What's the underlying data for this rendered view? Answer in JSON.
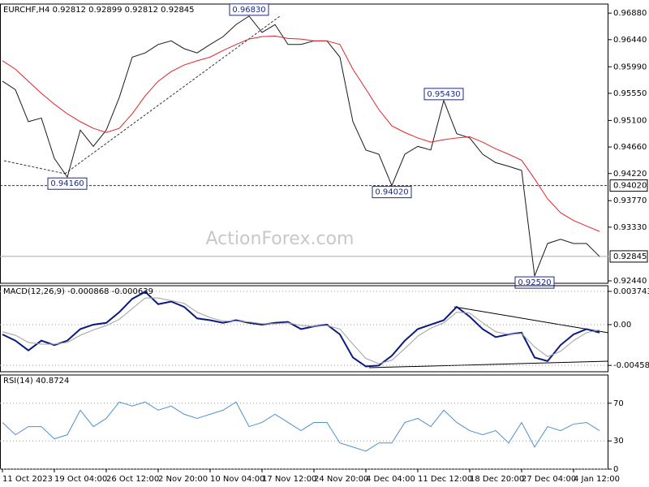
{
  "chart_data": [
    {
      "type": "line",
      "title": "EURCHF,H4  0.92812 0.92899 0.92812 0.92845",
      "watermark": "ActionForex.com",
      "ylim": [
        0.924,
        0.9703
      ],
      "yticks": [
        {
          "value": 0.9688,
          "label": "0.96880"
        },
        {
          "value": 0.9644,
          "label": "0.96440"
        },
        {
          "value": 0.9599,
          "label": "0.95990"
        },
        {
          "value": 0.9555,
          "label": "0.95550"
        },
        {
          "value": 0.951,
          "label": "0.95100"
        },
        {
          "value": 0.9466,
          "label": "0.94660"
        },
        {
          "value": 0.9422,
          "label": "0.94220"
        },
        {
          "value": 0.9377,
          "label": "0.93770"
        },
        {
          "value": 0.9333,
          "label": "0.93330"
        },
        {
          "value": 0.9244,
          "label": "0.92440"
        }
      ],
      "grid": false,
      "series": [
        {
          "color": "#1a1a1a",
          "values": [
            0.9575,
            0.9561,
            0.9508,
            0.9514,
            0.9447,
            0.9416,
            0.9494,
            0.9467,
            0.9494,
            0.9548,
            0.9615,
            0.9622,
            0.9636,
            0.9642,
            0.9629,
            0.9622,
            0.9636,
            0.9649,
            0.9669,
            0.9683,
            0.9656,
            0.9669,
            0.9636,
            0.9636,
            0.9642,
            0.9642,
            0.9615,
            0.9508,
            0.9461,
            0.9454,
            0.9402,
            0.9454,
            0.9467,
            0.9461,
            0.9543,
            0.9488,
            0.9481,
            0.9454,
            0.944,
            0.9434,
            0.9427,
            0.9252,
            0.9306,
            0.9313,
            0.9306,
            0.9306,
            0.92845
          ]
        },
        {
          "color": "#e0242b",
          "values": [
            0.9609,
            0.9595,
            0.9575,
            0.9555,
            0.9537,
            0.9521,
            0.9508,
            0.9497,
            0.949,
            0.9497,
            0.9521,
            0.9551,
            0.9575,
            0.9591,
            0.9602,
            0.9609,
            0.9615,
            0.9626,
            0.9636,
            0.9645,
            0.9649,
            0.965,
            0.9646,
            0.9645,
            0.9642,
            0.9642,
            0.9636,
            0.9595,
            0.9562,
            0.9528,
            0.9501,
            0.949,
            0.9481,
            0.9474,
            0.9478,
            0.9481,
            0.9483,
            0.9474,
            0.9463,
            0.9454,
            0.9444,
            0.9413,
            0.938,
            0.9357,
            0.9344,
            0.9335,
            0.9326
          ]
        }
      ],
      "annotations": [
        {
          "value": 0.9683,
          "label": "0.96830"
        },
        {
          "value": 0.9416,
          "label": "0.94160"
        },
        {
          "value": 0.9402,
          "label": "0.94020"
        },
        {
          "value": 0.9543,
          "label": "0.95430"
        },
        {
          "value": 0.9252,
          "label": "0.92520"
        }
      ],
      "levels": [
        {
          "value": 0.9402,
          "label": "0.94020",
          "dashed": true
        },
        {
          "value": 0.92845,
          "label": "0.92845",
          "dashed": false
        }
      ]
    },
    {
      "type": "line",
      "title": "MACD(12,26,9) -0.000868 -0.000639",
      "ylim": [
        -0.0053,
        0.00438
      ],
      "yticks": [
        0.003743,
        {
          "value": 0,
          "label": "0.00"
        },
        -0.004585
      ],
      "grid": true,
      "series": [
        {
          "color": "#0b1a80",
          "values": [
            -0.0011,
            -0.0018,
            -0.0029,
            -0.0018,
            -0.0023,
            -0.0018,
            -0.0005,
            0,
            0.0002,
            0.0014,
            0.0029,
            0.0037,
            0.0023,
            0.0026,
            0.002,
            0.0007,
            0.0005,
            0.0002,
            0.0005,
            0.0002,
            0,
            0.0002,
            0.0003,
            -0.0005,
            -0.0002,
            0,
            -0.0011,
            -0.0037,
            -0.0047,
            -0.0046,
            -0.0035,
            -0.0018,
            -0.0005,
            0,
            0.0005,
            0.002,
            0.0009,
            -0.0005,
            -0.0014,
            -0.0011,
            -0.0009,
            -0.0037,
            -0.0041,
            -0.0023,
            -0.0011,
            -0.0005,
            -0.0009
          ]
        },
        {
          "color": "#a0a0a0",
          "values": [
            -0.0008,
            -0.0012,
            -0.002,
            -0.0022,
            -0.0022,
            -0.002,
            -0.0012,
            -0.0006,
            -0.0001,
            0.0006,
            0.0018,
            0.003,
            0.003,
            0.0027,
            0.0024,
            0.0014,
            0.0008,
            0.0004,
            0.0004,
            0.0003,
            0.0001,
            0.0001,
            0.0002,
            -0.0001,
            -0.0002,
            -0.0001,
            -0.0005,
            -0.0022,
            -0.0038,
            -0.0044,
            -0.004,
            -0.0027,
            -0.0013,
            -0.0004,
            0.0002,
            0.0014,
            0.0013,
            0.0002,
            -0.0008,
            -0.0011,
            -0.001,
            -0.0025,
            -0.0036,
            -0.003,
            -0.0018,
            -0.0009,
            -0.0006
          ]
        }
      ]
    },
    {
      "type": "line",
      "title": "RSI(14) 40.8724",
      "ylim": [
        0,
        100
      ],
      "yticks": [
        70,
        30,
        0
      ],
      "grid": true,
      "categories": [
        "11 Oct 2023",
        null,
        null,
        null,
        "19 Oct 04:00",
        null,
        null,
        null,
        "26 Oct 12:00",
        null,
        null,
        null,
        "2 Nov 20:00",
        null,
        null,
        null,
        "10 Nov 04:00",
        null,
        null,
        null,
        "17 Nov 12:00",
        null,
        null,
        null,
        "24 Nov 20:00",
        null,
        null,
        null,
        "4 Dec 04:00",
        null,
        null,
        null,
        "11 Dec 12:00",
        null,
        null,
        null,
        "18 Dec 20:00",
        null,
        null,
        null,
        "27 Dec 04:00",
        null,
        null,
        null,
        "4 Jan 12:00",
        null,
        null
      ],
      "series": [
        {
          "color": "#4f90d0",
          "values": [
            49.6,
            36.5,
            45.2,
            45.2,
            32.2,
            36.5,
            62.6,
            45.2,
            53.9,
            71.3,
            67.0,
            71.3,
            62.6,
            67.0,
            58.3,
            53.9,
            58.3,
            62.6,
            71.3,
            45.2,
            49.6,
            58.3,
            49.6,
            40.9,
            49.6,
            49.6,
            27.8,
            23.5,
            19.1,
            27.8,
            27.8,
            49.6,
            53.9,
            45.2,
            62.6,
            49.6,
            40.9,
            36.5,
            40.9,
            27.8,
            49.6,
            23.5,
            45.2,
            40.9,
            47.8,
            49.6,
            40.8724
          ]
        }
      ]
    }
  ]
}
